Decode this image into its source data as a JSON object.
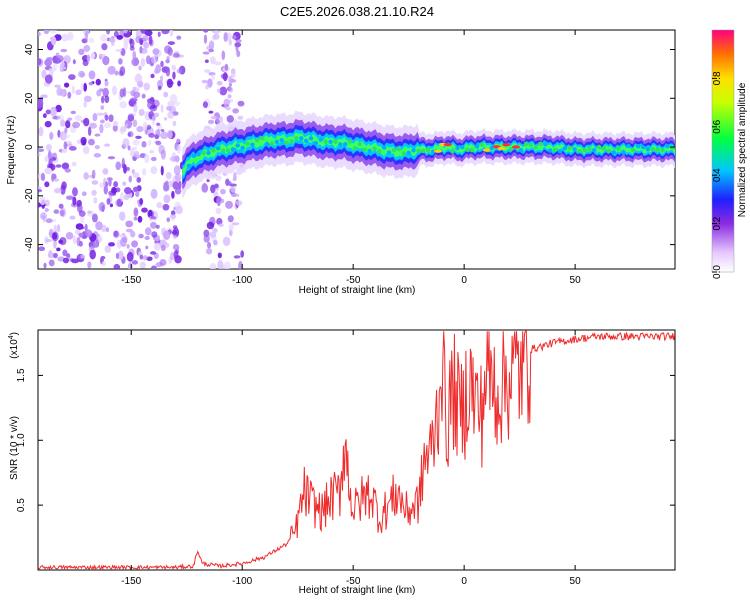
{
  "title": "C2E5.2026.038.21.10.R24",
  "chart_data": [
    {
      "type": "heatmap",
      "name": "spectrogram",
      "xlabel": "Height of straight line (km)",
      "ylabel": "Frequency (Hz)",
      "xlim": [
        -192,
        95
      ],
      "ylim": [
        -50,
        48
      ],
      "xticks": [
        -150,
        -100,
        -50,
        0,
        50
      ],
      "yticks": [
        -40,
        -20,
        0,
        20,
        40
      ],
      "colorbar": {
        "label": "Normalized spectral amplitude",
        "range": [
          0,
          1
        ],
        "ticks": [
          0.0,
          0.2,
          0.4,
          0.6,
          0.8
        ]
      },
      "regions": [
        {
          "description": "scattered noise",
          "x_range": [
            -192,
            -127
          ],
          "y_range": [
            -50,
            48
          ]
        },
        {
          "description": "scattered noise",
          "x_range": [
            -117,
            -100
          ],
          "y_range": [
            -50,
            48
          ]
        },
        {
          "description": "main signal track",
          "x_range": [
            -127,
            95
          ],
          "y_range": [
            -8,
            8
          ]
        }
      ],
      "ridge": {
        "x": [
          -127,
          -122,
          -116,
          -110,
          -104,
          -98,
          -92,
          -86,
          -80,
          -74,
          -68,
          -62,
          -56,
          -50,
          -44,
          -38,
          -32,
          -26,
          -20,
          -14,
          -8,
          -2,
          4,
          10,
          16,
          22,
          30,
          40,
          50,
          60,
          70,
          80,
          95
        ],
        "y": [
          -10,
          -5,
          -3,
          -1,
          0,
          1,
          2,
          3,
          3,
          4,
          3,
          2,
          2,
          1,
          0,
          -1,
          -2,
          -2,
          -1,
          -1,
          0,
          -1,
          0,
          0,
          0,
          0,
          0,
          0,
          -1,
          -1,
          -1,
          -1,
          -1
        ]
      }
    },
    {
      "type": "line",
      "name": "snr",
      "xlabel": "Height of straight line (km)",
      "ylabel": "SNR (10 * v/v)",
      "y_multiplier": "(x10",
      "y_multiplier_exp": "4",
      "y_multiplier_close": ")",
      "xlim": [
        -192,
        95
      ],
      "ylim": [
        0,
        1.85
      ],
      "xticks": [
        -150,
        -100,
        -50,
        0,
        50
      ],
      "yticks": [
        0.5,
        1.0,
        1.5
      ],
      "series": [
        {
          "name": "SNR",
          "color": "#ef2b2b",
          "x": [
            -192,
            -150,
            -130,
            -122,
            -120,
            -118,
            -110,
            -100,
            -90,
            -85,
            -80,
            -76,
            -72,
            -68,
            -64,
            -60,
            -56,
            -54,
            -50,
            -46,
            -42,
            -38,
            -34,
            -30,
            -26,
            -22,
            -20,
            -18,
            -15,
            -12,
            -10,
            -8,
            -5,
            -2,
            0,
            2,
            5,
            8,
            10,
            12,
            15,
            20,
            25,
            30,
            40,
            50,
            60,
            70,
            80,
            95
          ],
          "y": [
            0.02,
            0.02,
            0.02,
            0.03,
            0.15,
            0.05,
            0.03,
            0.05,
            0.1,
            0.15,
            0.2,
            0.3,
            0.6,
            0.5,
            0.45,
            0.55,
            0.6,
            1.0,
            0.45,
            0.55,
            0.6,
            0.4,
            0.5,
            0.6,
            0.45,
            0.5,
            0.55,
            0.85,
            0.9,
            1.2,
            1.7,
            1.1,
            1.4,
            1.2,
            1.25,
            1.5,
            1.3,
            1.2,
            1.6,
            1.45,
            1.4,
            1.5,
            1.55,
            1.7,
            1.75,
            1.78,
            1.8,
            1.8,
            1.8,
            1.8
          ]
        }
      ]
    }
  ]
}
